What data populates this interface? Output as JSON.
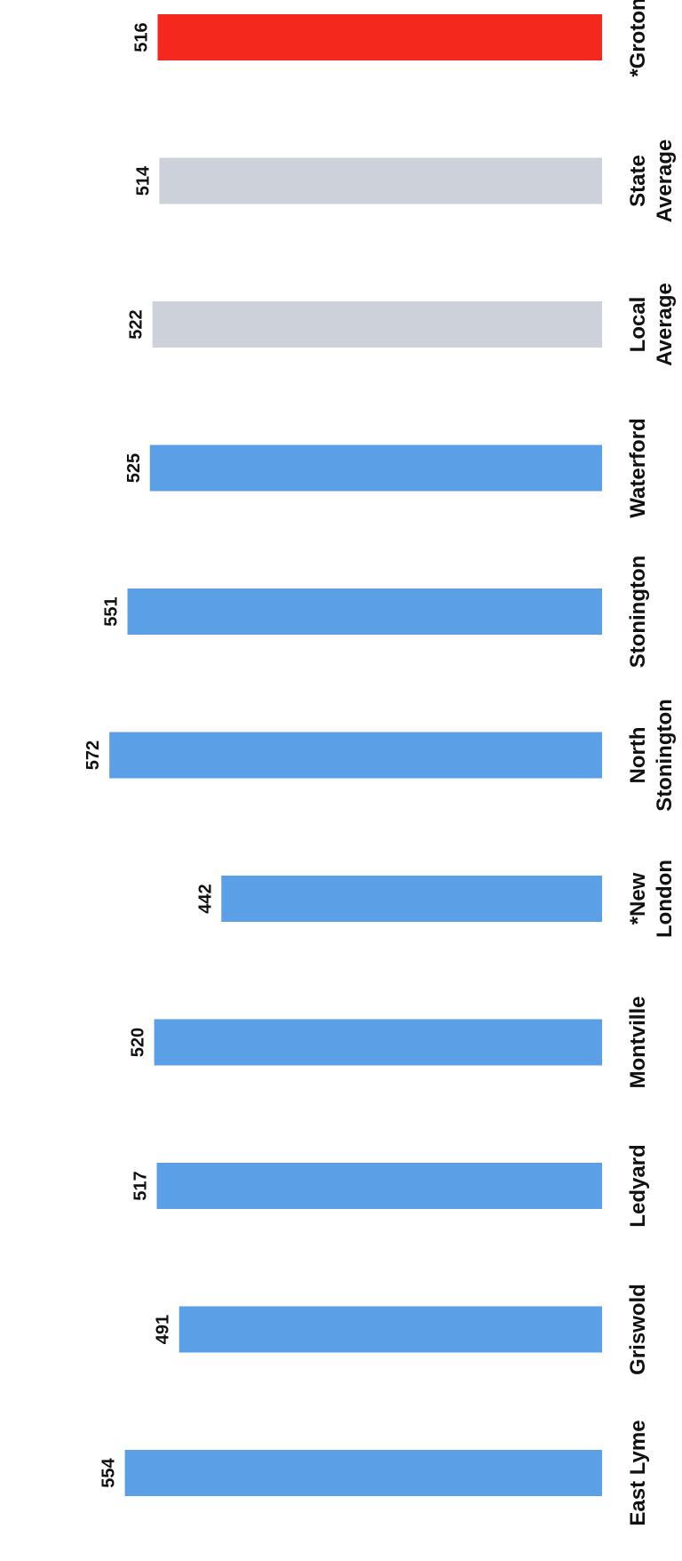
{
  "chart_data": {
    "type": "bar",
    "orientation": "horizontal",
    "categories": [
      "*Groton",
      "State Average",
      "Local Average",
      "Waterford",
      "Stonington",
      "North Stonington",
      "*New London",
      "Montville",
      "Ledyard",
      "Griswold",
      "East Lyme"
    ],
    "category_lines": [
      [
        "*Groton"
      ],
      [
        "State",
        "Average"
      ],
      [
        "Local",
        "Average"
      ],
      [
        "Waterford"
      ],
      [
        "Stonington"
      ],
      [
        "North",
        "Stonington"
      ],
      [
        "*New",
        "London"
      ],
      [
        "Montville"
      ],
      [
        "Ledyard"
      ],
      [
        "Griswold"
      ],
      [
        "East Lyme"
      ]
    ],
    "values": [
      516,
      514,
      522,
      525,
      551,
      572,
      442,
      520,
      517,
      491,
      554
    ],
    "value_labels": [
      "516",
      "514",
      "522",
      "525",
      "551",
      "572",
      "442",
      "520",
      "517",
      "491",
      "554"
    ],
    "colors": [
      "#f5281e",
      "#cdd1d9",
      "#cdd1d9",
      "#5b9fe6",
      "#5b9fe6",
      "#5b9fe6",
      "#5b9fe6",
      "#5b9fe6",
      "#5b9fe6",
      "#5b9fe6",
      "#5b9fe6"
    ],
    "title": "",
    "xlabel": "",
    "ylabel": "",
    "grid": false,
    "legend": "none"
  }
}
